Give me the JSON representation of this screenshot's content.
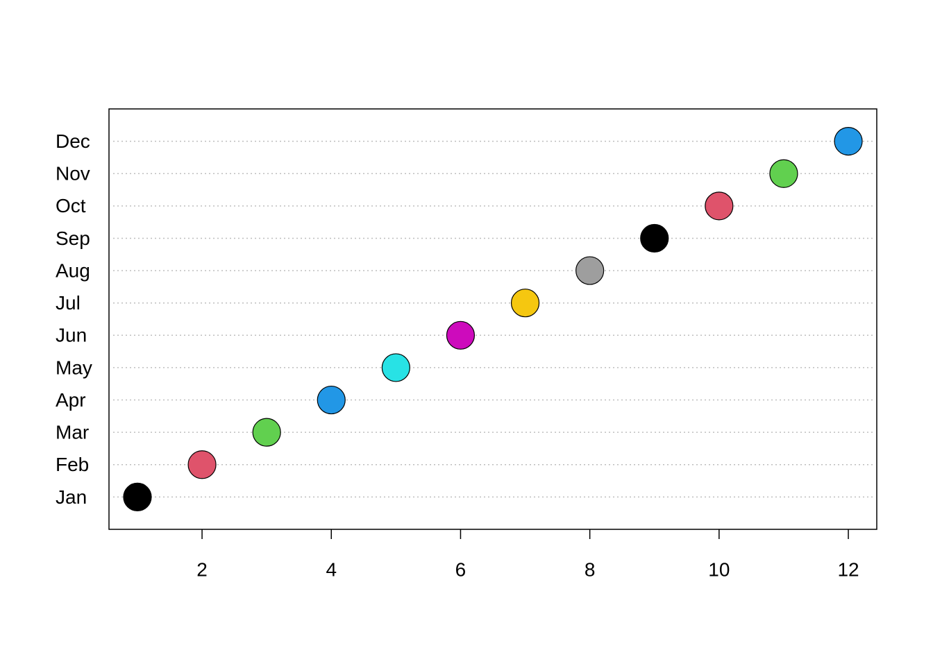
{
  "chart_data": {
    "type": "dot",
    "categories": [
      "Jan",
      "Feb",
      "Mar",
      "Apr",
      "May",
      "Jun",
      "Jul",
      "Aug",
      "Sep",
      "Oct",
      "Nov",
      "Dec"
    ],
    "values": [
      1,
      2,
      3,
      4,
      5,
      6,
      7,
      8,
      9,
      10,
      11,
      12
    ],
    "colors": [
      "#000000",
      "#DF536B",
      "#61D04F",
      "#2297E6",
      "#28E2E5",
      "#CD0BBC",
      "#F5C710",
      "#9E9E9E",
      "#000000",
      "#DF536B",
      "#61D04F",
      "#2297E6"
    ],
    "xlim": [
      0.56,
      12.44
    ],
    "xticks": [
      2,
      4,
      6,
      8,
      10,
      12
    ],
    "grid": true
  }
}
